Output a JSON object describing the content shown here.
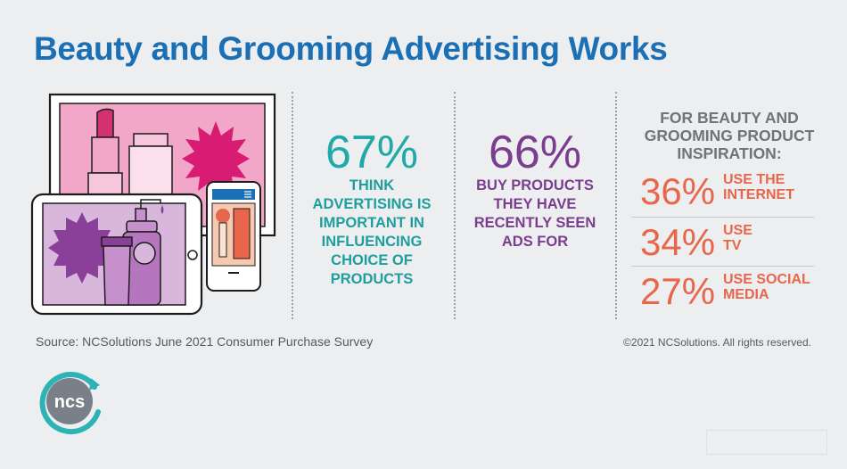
{
  "title": "Beauty and Grooming Advertising Works",
  "stat1": {
    "value": "67%",
    "lines": [
      "THINK",
      "ADVERTISING IS",
      "IMPORTANT IN",
      "INFLUENCING",
      "CHOICE OF",
      "PRODUCTS"
    ]
  },
  "stat2": {
    "value": "66%",
    "lines": [
      "BUY PRODUCTS",
      "THEY HAVE",
      "RECENTLY SEEN",
      "ADS FOR"
    ]
  },
  "inspiration": {
    "heading_lines": [
      "FOR BEAUTY AND",
      "GROOMING PRODUCT",
      "INSPIRATION:"
    ],
    "items": [
      {
        "value": "36%",
        "label_lines": [
          "USE THE",
          "INTERNET"
        ]
      },
      {
        "value": "34%",
        "label_lines": [
          "USE",
          "TV"
        ]
      },
      {
        "value": "27%",
        "label_lines": [
          "USE SOCIAL",
          "MEDIA"
        ]
      }
    ]
  },
  "source": "Source: NCSolutions June 2021 Consumer Purchase Survey",
  "copyright": "©2021 NCSolutions. All rights reserved.",
  "logo": {
    "text": "ncs"
  },
  "colors": {
    "title": "#1b6fb5",
    "teal": "#1fa9a9",
    "purple": "#7b3d8e",
    "orange": "#e8664b",
    "gray": "#6f7479"
  }
}
